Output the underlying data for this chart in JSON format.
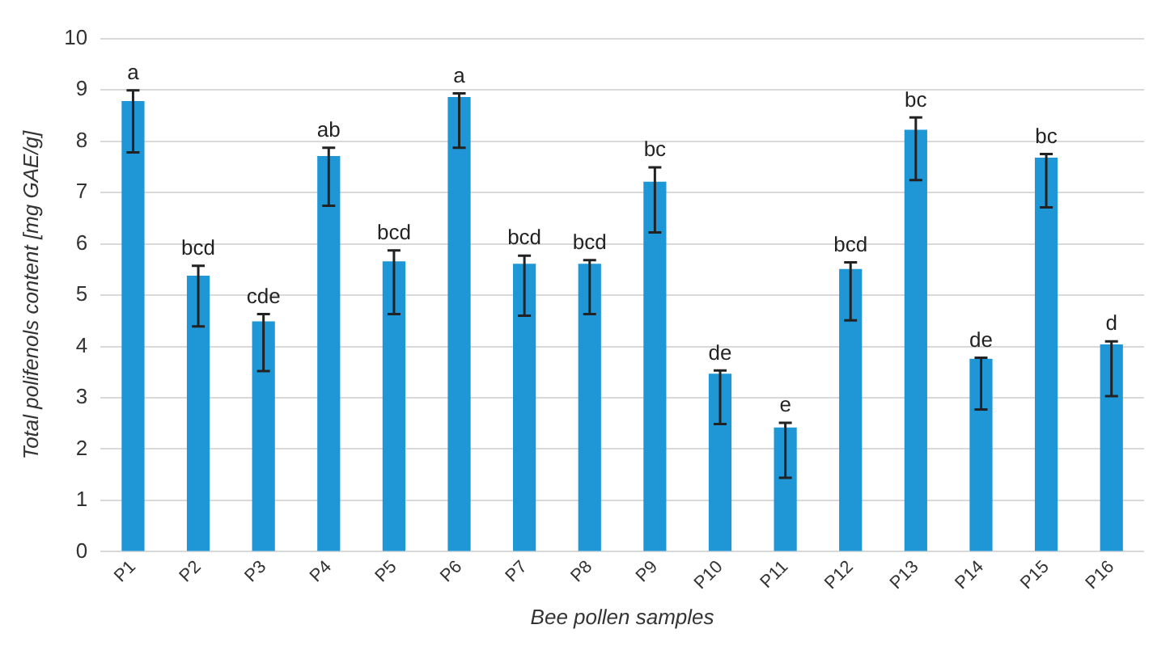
{
  "chart_data": {
    "type": "bar",
    "xlabel": "Bee pollen samples",
    "ylabel": "Total polifenols content [mg GAE/g]",
    "categories": [
      "P1",
      "P2",
      "P3",
      "P4",
      "P5",
      "P6",
      "P7",
      "P8",
      "P9",
      "P10",
      "P11",
      "P12",
      "P13",
      "P14",
      "P15",
      "P16"
    ],
    "values": [
      8.78,
      5.38,
      4.49,
      7.71,
      5.66,
      8.86,
      5.61,
      5.61,
      7.21,
      3.47,
      2.42,
      5.51,
      8.22,
      3.76,
      7.68,
      4.04
    ],
    "errors": [
      [
        7.78,
        8.99
      ],
      [
        4.39,
        5.57
      ],
      [
        3.52,
        4.63
      ],
      [
        6.74,
        7.87
      ],
      [
        4.63,
        5.87
      ],
      [
        7.87,
        8.93
      ],
      [
        4.6,
        5.77
      ],
      [
        4.63,
        5.68
      ],
      [
        6.22,
        7.49
      ],
      [
        2.49,
        3.53
      ],
      [
        1.44,
        2.51
      ],
      [
        4.51,
        5.64
      ],
      [
        7.24,
        8.46
      ],
      [
        2.77,
        3.78
      ],
      [
        6.71,
        7.75
      ],
      [
        3.03,
        4.1
      ]
    ],
    "color": "#1f96d6",
    "ylim": [
      0,
      10
    ],
    "yticks": [
      0,
      1,
      2,
      3,
      4,
      5,
      6,
      7,
      8,
      9,
      10
    ],
    "grid": "y",
    "legend": false,
    "annotations": [
      {
        "text": "a",
        "x": "P1",
        "y": 8.78
      },
      {
        "text": "bcd",
        "x": "P2",
        "y": 5.38
      },
      {
        "text": "cde",
        "x": "P3",
        "y": 4.49
      },
      {
        "text": "ab",
        "x": "P4",
        "y": 7.71
      },
      {
        "text": "bcd",
        "x": "P5",
        "y": 5.66
      },
      {
        "text": "a",
        "x": "P6",
        "y": 8.86
      },
      {
        "text": "bcd",
        "x": "P7",
        "y": 5.61
      },
      {
        "text": "bcd",
        "x": "P8",
        "y": 5.61
      },
      {
        "text": "bc",
        "x": "P9",
        "y": 7.21
      },
      {
        "text": "de",
        "x": "P10",
        "y": 3.47
      },
      {
        "text": "e",
        "x": "P11",
        "y": 2.42
      },
      {
        "text": "bcd",
        "x": "P12",
        "y": 5.51
      },
      {
        "text": "bc",
        "x": "P13",
        "y": 8.22
      },
      {
        "text": "de",
        "x": "P14",
        "y": 3.76
      },
      {
        "text": "bc",
        "x": "P15",
        "y": 7.68
      },
      {
        "text": "d",
        "x": "P16",
        "y": 4.04
      }
    ]
  }
}
